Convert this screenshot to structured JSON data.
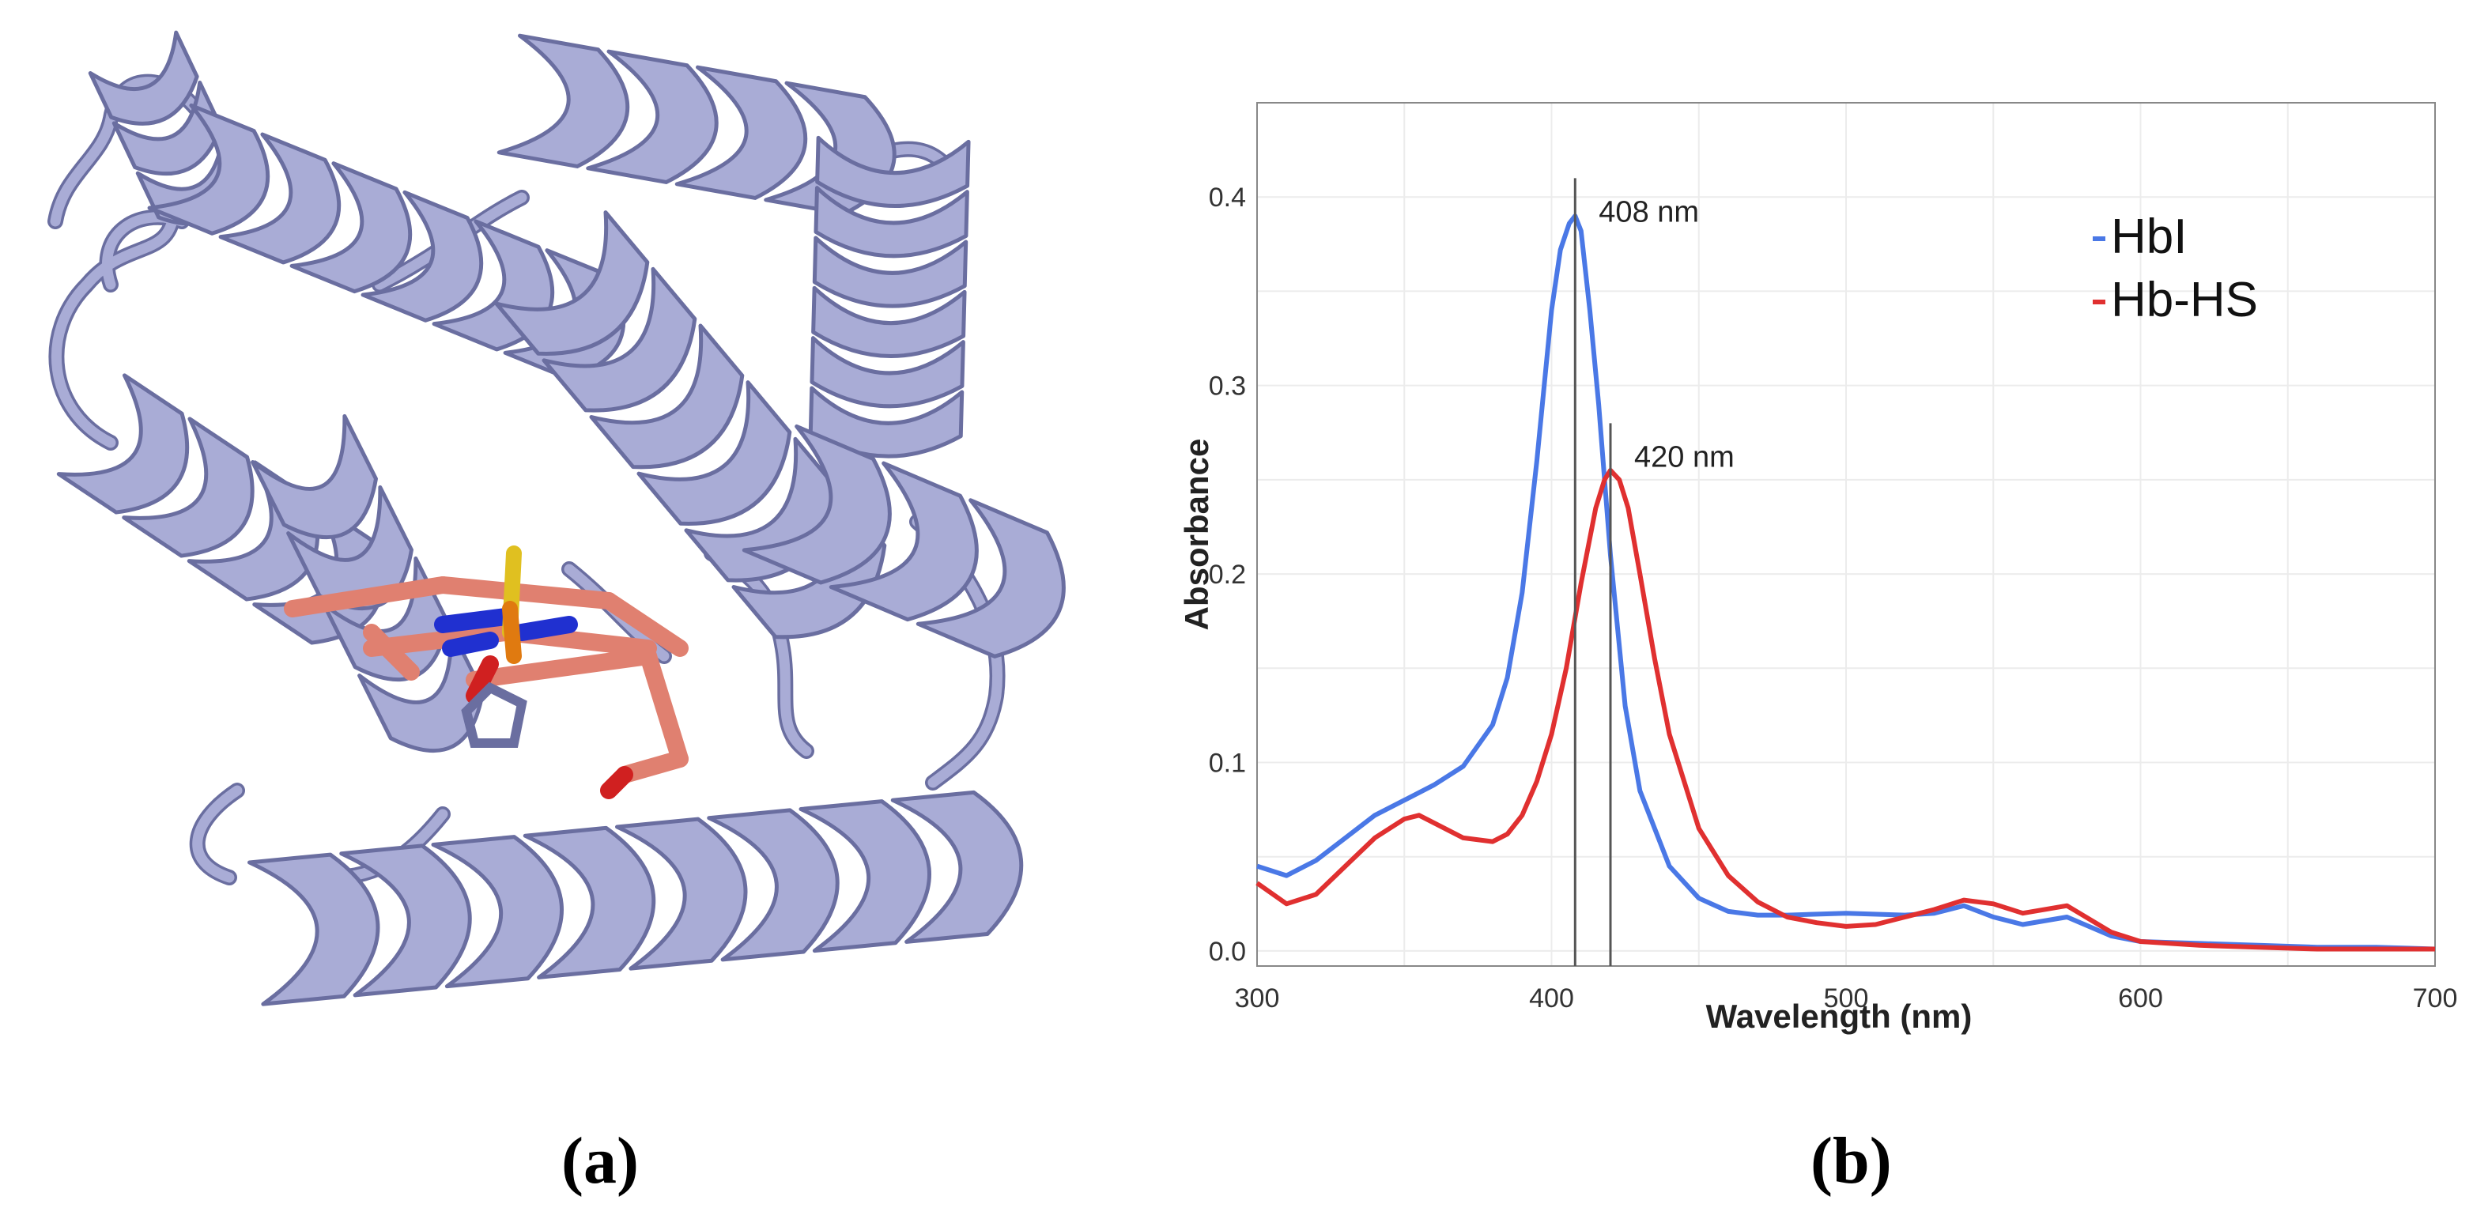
{
  "panels": {
    "left_label": "(a)",
    "right_label": "(b)"
  },
  "structure": {
    "ribbon_color": "#a9acd6",
    "ribbon_edge_color": "#6a6ea0",
    "heme_color": "#e08070",
    "nitrogen_color": "#2030d0",
    "oxygen_color": "#d02020",
    "sulfide_color": "#e0c020",
    "iron_color": "#e07a10"
  },
  "chart_data": {
    "type": "line",
    "xlabel": "Wavelength (nm)",
    "ylabel": "Absorbance",
    "xlim": [
      300,
      700
    ],
    "ylim": [
      -0.008,
      0.45
    ],
    "xticks": [
      300,
      400,
      500,
      600,
      700
    ],
    "yticks": [
      0.0,
      0.1,
      0.2,
      0.3,
      0.4
    ],
    "ytick_labels": [
      "0.0",
      "0.1",
      "0.2",
      "0.3",
      "0.4"
    ],
    "grid": true,
    "legend_position": "top-right",
    "annotations": [
      {
        "text": "408 nm",
        "x": 408,
        "y_top": 0.41
      },
      {
        "text": "420 nm",
        "x": 420,
        "y_top": 0.28
      }
    ],
    "series": [
      {
        "name": "HbI",
        "color": "#4a78e6",
        "x": [
          300,
          310,
          320,
          330,
          340,
          350,
          360,
          370,
          380,
          385,
          390,
          395,
          400,
          403,
          406,
          408,
          410,
          413,
          416,
          420,
          425,
          430,
          440,
          450,
          460,
          470,
          480,
          500,
          520,
          530,
          540,
          550,
          560,
          575,
          590,
          600,
          620,
          640,
          660,
          680,
          700
        ],
        "y": [
          0.045,
          0.04,
          0.048,
          0.06,
          0.072,
          0.08,
          0.088,
          0.098,
          0.12,
          0.145,
          0.19,
          0.26,
          0.34,
          0.372,
          0.386,
          0.39,
          0.382,
          0.34,
          0.29,
          0.21,
          0.13,
          0.085,
          0.045,
          0.028,
          0.021,
          0.019,
          0.019,
          0.02,
          0.019,
          0.02,
          0.024,
          0.018,
          0.014,
          0.018,
          0.008,
          0.005,
          0.004,
          0.003,
          0.002,
          0.002,
          0.001
        ]
      },
      {
        "name": "Hb-HS",
        "color": "#e03030",
        "x": [
          300,
          310,
          320,
          330,
          340,
          350,
          355,
          360,
          370,
          380,
          385,
          390,
          395,
          400,
          405,
          410,
          415,
          418,
          420,
          423,
          426,
          430,
          435,
          440,
          450,
          460,
          470,
          480,
          490,
          500,
          510,
          520,
          530,
          540,
          550,
          560,
          575,
          590,
          600,
          620,
          640,
          660,
          680,
          700
        ],
        "y": [
          0.036,
          0.025,
          0.03,
          0.045,
          0.06,
          0.07,
          0.072,
          0.068,
          0.06,
          0.058,
          0.062,
          0.072,
          0.09,
          0.115,
          0.15,
          0.195,
          0.235,
          0.25,
          0.255,
          0.25,
          0.235,
          0.2,
          0.155,
          0.115,
          0.065,
          0.04,
          0.026,
          0.018,
          0.015,
          0.013,
          0.014,
          0.018,
          0.022,
          0.027,
          0.025,
          0.02,
          0.024,
          0.01,
          0.005,
          0.003,
          0.002,
          0.001,
          0.001,
          0.001
        ]
      }
    ]
  }
}
